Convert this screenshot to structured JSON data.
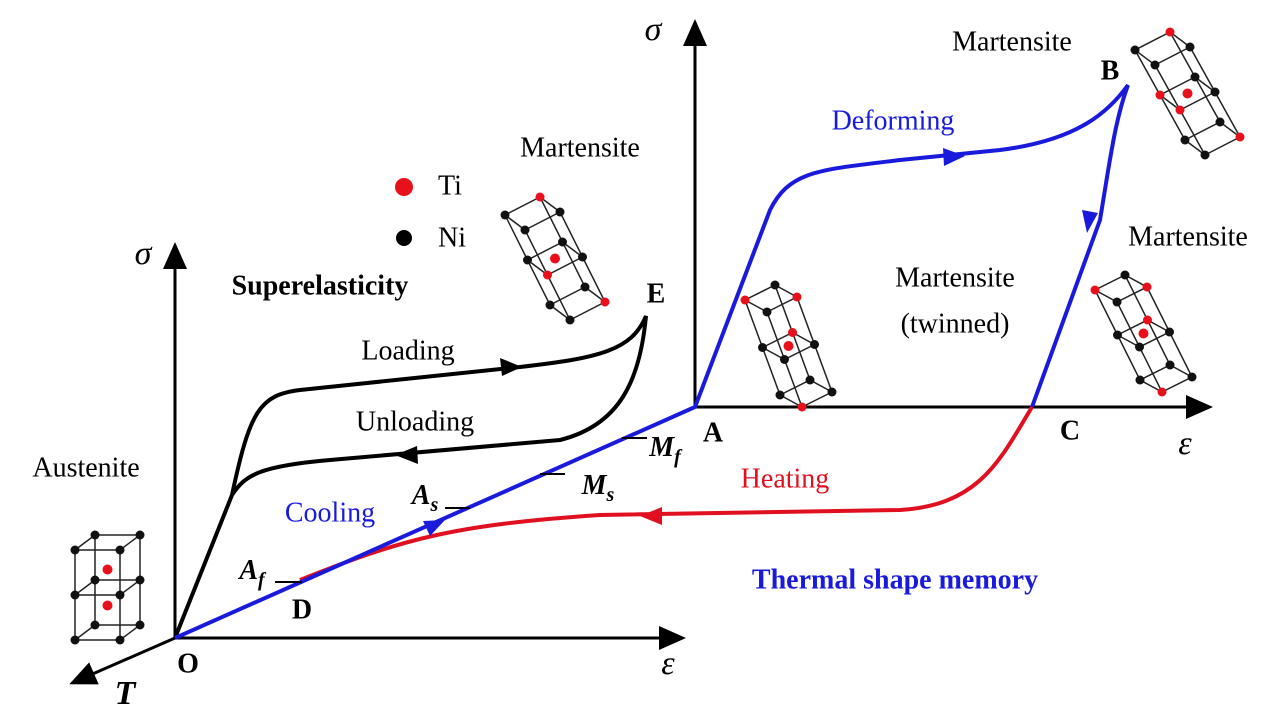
{
  "superelasticity": {
    "title": "Superelasticity",
    "y_axis": "σ",
    "x_axis": "ε",
    "t_axis": "T",
    "origin": "O",
    "loading": "Loading",
    "unloading": "Unloading",
    "cooling": "Cooling",
    "point_d": "D",
    "point_e": "E",
    "a_s": {
      "base": "A",
      "sub": "s"
    },
    "a_f": {
      "base": "A",
      "sub": "f"
    }
  },
  "shape_memory": {
    "title": "Thermal shape memory",
    "y_axis": "σ",
    "x_axis": "ε",
    "deforming": "Deforming",
    "heating": "Heating",
    "point_a": "A",
    "point_b": "B",
    "point_c": "C",
    "m_f": {
      "base": "M",
      "sub": "f"
    },
    "m_s": {
      "base": "M",
      "sub": "s"
    }
  },
  "legend": [
    "Ti",
    "Ni"
  ],
  "phases": {
    "austenite": "Austenite",
    "martensite_1": "Martensite",
    "martensite_2": "Martensite",
    "martensite_3": "Martensite",
    "twinned": [
      "Martensite",
      "(twinned)"
    ]
  }
}
